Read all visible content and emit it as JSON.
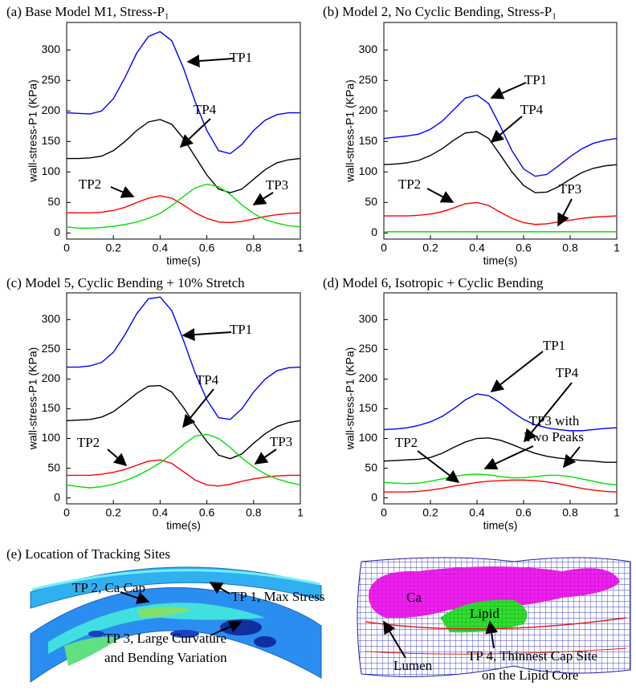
{
  "chart_data": [
    {
      "type": "line",
      "title": "(a) Base Model M1, Stress-P₁",
      "xlabel": "time(s)",
      "ylabel": "wall-stress-P1 (KPa)",
      "x": [
        0,
        0.05,
        0.1,
        0.15,
        0.2,
        0.25,
        0.3,
        0.35,
        0.4,
        0.45,
        0.5,
        0.55,
        0.6,
        0.65,
        0.7,
        0.75,
        0.8,
        0.85,
        0.9,
        0.95,
        1
      ],
      "xlim": [
        0,
        1
      ],
      "xticks": [
        0,
        0.2,
        0.4,
        0.6,
        0.8,
        1
      ],
      "ylim": [
        -10,
        345
      ],
      "yticks": [
        0,
        50,
        100,
        150,
        200,
        250,
        300
      ],
      "series": [
        {
          "name": "TP1",
          "color": "#0000ff",
          "values": [
            197,
            196,
            195,
            200,
            220,
            255,
            295,
            322,
            330,
            315,
            270,
            215,
            168,
            135,
            130,
            145,
            168,
            185,
            194,
            197,
            197
          ]
        },
        {
          "name": "TP4",
          "color": "#000000",
          "values": [
            122,
            122,
            123,
            126,
            135,
            150,
            168,
            182,
            186,
            178,
            155,
            125,
            95,
            72,
            66,
            72,
            88,
            104,
            115,
            120,
            122
          ]
        },
        {
          "name": "TP2",
          "color": "#ff0000",
          "values": [
            33,
            33,
            33,
            34,
            37,
            42,
            50,
            57,
            61,
            57,
            46,
            33,
            24,
            18,
            17,
            19,
            23,
            27,
            30,
            32,
            33
          ]
        },
        {
          "name": "TP3",
          "color": "#00e000",
          "values": [
            10,
            8,
            8,
            9,
            11,
            14,
            18,
            24,
            32,
            45,
            60,
            74,
            80,
            76,
            63,
            46,
            32,
            22,
            16,
            12,
            10
          ]
        }
      ],
      "annotations": [
        "TP1",
        "TP4",
        "TP2",
        "TP3"
      ]
    },
    {
      "type": "line",
      "title": "(b) Model 2, No Cyclic Bending, Stress-P₁",
      "xlabel": "time(s)",
      "ylabel": "wall-stress-P1 (KPa)",
      "x": [
        0,
        0.05,
        0.1,
        0.15,
        0.2,
        0.25,
        0.3,
        0.35,
        0.4,
        0.45,
        0.5,
        0.55,
        0.6,
        0.65,
        0.7,
        0.75,
        0.8,
        0.85,
        0.9,
        0.95,
        1
      ],
      "xlim": [
        0,
        1
      ],
      "xticks": [
        0,
        0.2,
        0.4,
        0.6,
        0.8,
        1
      ],
      "ylim": [
        -10,
        345
      ],
      "yticks": [
        0,
        50,
        100,
        150,
        200,
        250,
        300
      ],
      "series": [
        {
          "name": "TP1",
          "color": "#0000ff",
          "values": [
            155,
            157,
            159,
            162,
            170,
            183,
            202,
            221,
            226,
            212,
            175,
            135,
            105,
            93,
            96,
            110,
            125,
            138,
            147,
            152,
            155
          ]
        },
        {
          "name": "TP4",
          "color": "#000000",
          "values": [
            112,
            113,
            115,
            119,
            127,
            138,
            152,
            164,
            166,
            155,
            128,
            100,
            78,
            66,
            67,
            76,
            88,
            99,
            106,
            110,
            112
          ]
        },
        {
          "name": "TP2",
          "color": "#ff0000",
          "values": [
            28,
            28,
            28,
            29,
            31,
            35,
            41,
            48,
            50,
            45,
            34,
            24,
            17,
            14,
            15,
            18,
            21,
            24,
            26,
            27,
            28
          ]
        },
        {
          "name": "TP3",
          "color": "#00e000",
          "values": [
            2,
            2,
            2,
            2,
            2,
            2,
            2,
            2,
            2,
            2,
            2,
            2,
            2,
            2,
            2,
            2,
            2,
            2,
            2,
            2,
            2
          ]
        }
      ],
      "annotations": [
        "TP1",
        "TP4",
        "TP2",
        "TP3"
      ]
    },
    {
      "type": "line",
      "title": "(c) Model 5, Cyclic Bending + 10% Stretch",
      "xlabel": "time(s)",
      "ylabel": "wall-stress-P1 (KPa)",
      "x": [
        0,
        0.05,
        0.1,
        0.15,
        0.2,
        0.25,
        0.3,
        0.35,
        0.4,
        0.45,
        0.5,
        0.55,
        0.6,
        0.65,
        0.7,
        0.75,
        0.8,
        0.85,
        0.9,
        0.95,
        1
      ],
      "xlim": [
        0,
        1
      ],
      "xticks": [
        0,
        0.2,
        0.4,
        0.6,
        0.8,
        1
      ],
      "ylim": [
        -10,
        345
      ],
      "yticks": [
        0,
        50,
        100,
        150,
        200,
        250,
        300
      ],
      "series": [
        {
          "name": "TP1",
          "color": "#0000ff",
          "values": [
            220,
            220,
            222,
            228,
            245,
            275,
            310,
            335,
            338,
            315,
            265,
            210,
            165,
            135,
            132,
            150,
            178,
            200,
            214,
            219,
            220
          ]
        },
        {
          "name": "TP4",
          "color": "#000000",
          "values": [
            130,
            131,
            132,
            136,
            145,
            160,
            176,
            188,
            189,
            178,
            152,
            122,
            95,
            72,
            66,
            74,
            92,
            108,
            120,
            127,
            130
          ]
        },
        {
          "name": "TP2",
          "color": "#ff0000",
          "values": [
            38,
            38,
            38,
            40,
            43,
            48,
            55,
            62,
            64,
            58,
            44,
            30,
            22,
            20,
            23,
            28,
            32,
            35,
            37,
            38,
            38
          ]
        },
        {
          "name": "TP3",
          "color": "#00e000",
          "values": [
            22,
            19,
            17,
            19,
            23,
            29,
            37,
            47,
            59,
            74,
            90,
            104,
            107,
            100,
            85,
            67,
            52,
            40,
            32,
            26,
            22
          ]
        }
      ],
      "annotations": [
        "TP1",
        "TP4",
        "TP2",
        "TP3"
      ]
    },
    {
      "type": "line",
      "title": "(d) Model 6, Isotropic + Cyclic Bending",
      "xlabel": "time(s)",
      "ylabel": "wall-stress-P1 (KPa)",
      "x": [
        0,
        0.05,
        0.1,
        0.15,
        0.2,
        0.25,
        0.3,
        0.35,
        0.4,
        0.45,
        0.5,
        0.55,
        0.6,
        0.65,
        0.7,
        0.75,
        0.8,
        0.85,
        0.9,
        0.95,
        1
      ],
      "xlim": [
        0,
        1
      ],
      "xticks": [
        0,
        0.2,
        0.4,
        0.6,
        0.8,
        1
      ],
      "ylim": [
        -10,
        345
      ],
      "yticks": [
        0,
        50,
        100,
        150,
        200,
        250,
        300
      ],
      "series": [
        {
          "name": "TP1",
          "color": "#0000ff",
          "values": [
            115,
            116,
            118,
            122,
            128,
            137,
            150,
            165,
            175,
            172,
            160,
            145,
            132,
            123,
            118,
            115,
            113,
            113,
            115,
            117,
            118
          ]
        },
        {
          "name": "TP4",
          "color": "#000000",
          "values": [
            62,
            63,
            64,
            65,
            68,
            75,
            85,
            94,
            100,
            101,
            97,
            90,
            82,
            75,
            70,
            67,
            65,
            63,
            62,
            60,
            60
          ]
        },
        {
          "name": "TP2",
          "color": "#ff0000",
          "values": [
            10,
            10,
            10,
            11,
            13,
            16,
            20,
            23,
            26,
            28,
            29,
            30,
            30,
            29,
            27,
            24,
            20,
            16,
            13,
            11,
            10
          ]
        },
        {
          "name": "TP3",
          "color": "#00e000",
          "values": [
            26,
            25,
            24,
            25,
            28,
            32,
            36,
            39,
            40,
            39,
            36,
            34,
            34,
            36,
            38,
            38,
            36,
            32,
            28,
            24,
            22
          ]
        }
      ],
      "annotations": [
        "TP1",
        "TP4",
        "TP3 with",
        "Two Peaks",
        "TP2"
      ]
    }
  ],
  "panel_e": {
    "title": "(e) Location of Tracking Sites",
    "left_labels": [
      "TP 2, Ca Cap",
      "TP 1, Max Stress",
      "TP 3, Large Curvature",
      "and Bending Variation"
    ],
    "right_labels": [
      "Ca",
      "Lipid",
      "Lumen",
      "TP 4, Thinnest Cap Site",
      "on the Lipid Core"
    ]
  }
}
